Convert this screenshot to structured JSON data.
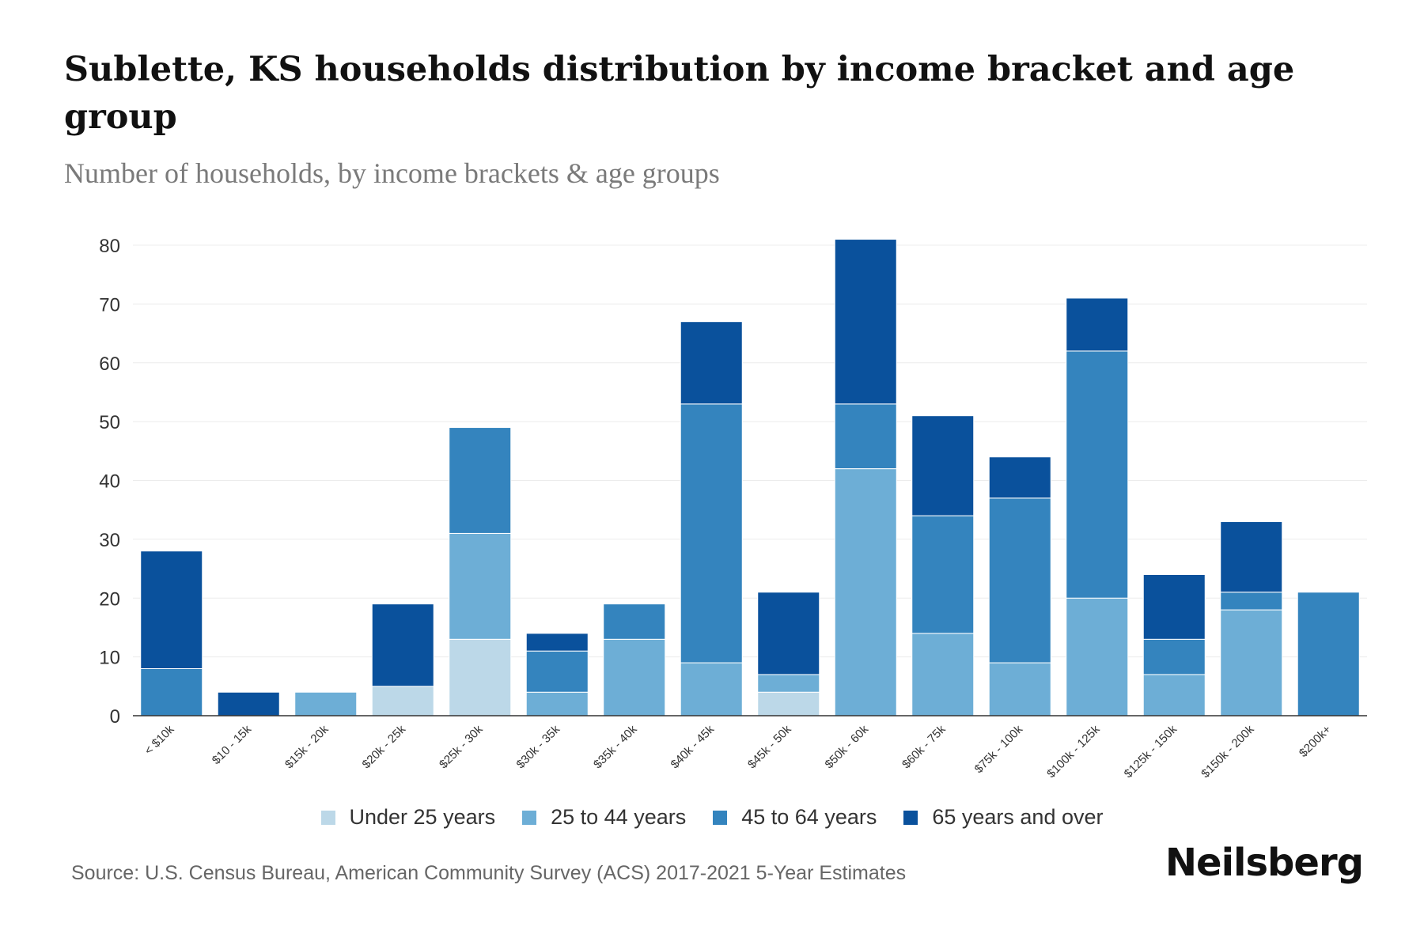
{
  "header": {
    "title": "Sublette, KS households distribution by income bracket and age group",
    "subtitle": "Number of households, by income brackets & age groups"
  },
  "footer": {
    "source": "Source: U.S. Census Bureau, American Community Survey (ACS) 2017-2021 5-Year Estimates",
    "brand": "Neilsberg"
  },
  "chart_data": {
    "type": "bar",
    "stacked": true,
    "title": "Sublette, KS households distribution by income bracket and age group",
    "subtitle": "Number of households, by income brackets & age groups",
    "xlabel": "",
    "ylabel": "",
    "ylim": [
      0,
      80
    ],
    "yticks": [
      0,
      10,
      20,
      30,
      40,
      50,
      60,
      70,
      80
    ],
    "grid": true,
    "legend_position": "bottom",
    "categories": [
      "< $10k",
      "$10 - 15k",
      "$15k - 20k",
      "$20k - 25k",
      "$25k - 30k",
      "$30k - 35k",
      "$35k - 40k",
      "$40k - 45k",
      "$45k - 50k",
      "$50k - 60k",
      "$60k - 75k",
      "$75k - 100k",
      "$100k - 125k",
      "$125k - 150k",
      "$150k - 200k",
      "$200k+"
    ],
    "series": [
      {
        "name": "Under 25 years",
        "color": "#bcd8e8",
        "values": [
          0,
          0,
          0,
          5,
          13,
          0,
          0,
          0,
          4,
          0,
          0,
          0,
          0,
          0,
          0,
          0
        ]
      },
      {
        "name": "25 to 44 years",
        "color": "#6daed6",
        "values": [
          0,
          0,
          4,
          0,
          18,
          4,
          13,
          9,
          3,
          42,
          14,
          9,
          20,
          7,
          18,
          0
        ]
      },
      {
        "name": "45 to 64 years",
        "color": "#3484be",
        "values": [
          8,
          0,
          0,
          0,
          18,
          7,
          6,
          44,
          0,
          11,
          20,
          28,
          42,
          6,
          3,
          21
        ]
      },
      {
        "name": "65 years and over",
        "color": "#0a519c",
        "values": [
          20,
          4,
          0,
          14,
          0,
          3,
          0,
          14,
          14,
          28,
          17,
          7,
          9,
          11,
          12,
          0
        ]
      }
    ]
  }
}
